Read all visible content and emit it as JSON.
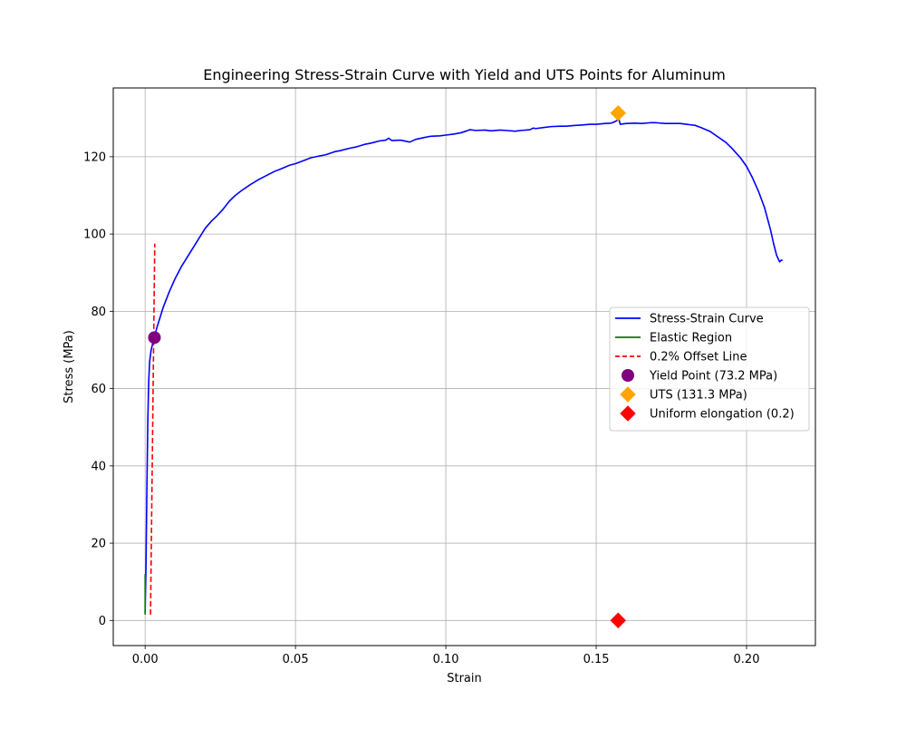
{
  "chart_data": {
    "type": "line",
    "title": "Engineering Stress-Strain Curve with Yield and UTS Points for Aluminum",
    "xlabel": "Strain",
    "ylabel": "Stress (MPa)",
    "xlim": [
      -0.0106,
      0.2229
    ],
    "ylim": [
      -6.5,
      137.8
    ],
    "x_ticks": [
      0.0,
      0.05,
      0.1,
      0.15,
      0.2
    ],
    "x_tick_labels": [
      "0.00",
      "0.05",
      "0.10",
      "0.15",
      "0.20"
    ],
    "y_ticks": [
      0,
      20,
      40,
      60,
      80,
      100,
      120
    ],
    "y_tick_labels": [
      "0",
      "20",
      "40",
      "60",
      "80",
      "100",
      "120"
    ],
    "grid": true,
    "legend_position": "center-right",
    "series": [
      {
        "name": "Stress-Strain Curve",
        "kind": "line",
        "color": "#0000ff",
        "style": "solid",
        "x": [
          0.0,
          0.0003,
          0.0006,
          0.0009,
          0.0012,
          0.0015,
          0.002,
          0.003,
          0.004,
          0.006,
          0.008,
          0.01,
          0.012,
          0.014,
          0.016,
          0.018,
          0.02,
          0.022,
          0.024,
          0.026,
          0.028,
          0.03,
          0.032,
          0.035,
          0.038,
          0.04,
          0.043,
          0.045,
          0.048,
          0.05,
          0.053,
          0.055,
          0.058,
          0.06,
          0.063,
          0.065,
          0.068,
          0.07,
          0.073,
          0.075,
          0.078,
          0.08,
          0.081,
          0.082,
          0.085,
          0.088,
          0.09,
          0.093,
          0.095,
          0.098,
          0.1,
          0.103,
          0.105,
          0.107,
          0.108,
          0.11,
          0.113,
          0.115,
          0.118,
          0.12,
          0.123,
          0.125,
          0.128,
          0.129,
          0.13,
          0.133,
          0.135,
          0.138,
          0.14,
          0.143,
          0.145,
          0.148,
          0.15,
          0.153,
          0.155,
          0.156,
          0.157,
          0.1573,
          0.158,
          0.16,
          0.163,
          0.165,
          0.168,
          0.17,
          0.173,
          0.175,
          0.178,
          0.18,
          0.183,
          0.185,
          0.188,
          0.19,
          0.193,
          0.195,
          0.198,
          0.2,
          0.202,
          0.204,
          0.206,
          0.208,
          0.209,
          0.21,
          0.211,
          0.2115,
          0.212
        ],
        "y": [
          2,
          15,
          35,
          52,
          62,
          67,
          70,
          73.2,
          76,
          81,
          85,
          88.5,
          91.5,
          94,
          96.5,
          99,
          101.5,
          103.3,
          104.8,
          106.5,
          108.5,
          110,
          111.2,
          112.8,
          114.2,
          115,
          116.2,
          116.8,
          117.8,
          118.2,
          119.1,
          119.7,
          120.2,
          120.5,
          121.3,
          121.6,
          122.2,
          122.5,
          123.2,
          123.5,
          124.1,
          124.3,
          124.8,
          124.2,
          124.3,
          123.8,
          124.5,
          125,
          125.3,
          125.4,
          125.6,
          125.9,
          126.2,
          126.7,
          127,
          126.8,
          126.9,
          126.7,
          126.9,
          126.8,
          126.6,
          126.8,
          127,
          127.4,
          127.3,
          127.6,
          127.8,
          127.9,
          127.9,
          128.1,
          128.2,
          128.4,
          128.4,
          128.6,
          128.7,
          129,
          129.4,
          130.5,
          128.4,
          128.6,
          128.7,
          128.6,
          128.8,
          128.8,
          128.6,
          128.6,
          128.6,
          128.4,
          128.1,
          127.5,
          126.5,
          125.4,
          123.8,
          122.3,
          119.7,
          117.5,
          114.5,
          111,
          106.8,
          101,
          97.5,
          94.5,
          92.8,
          93.2,
          93.2
        ]
      },
      {
        "name": "Elastic Region",
        "kind": "line",
        "color": "#008000",
        "style": "solid",
        "x": [
          0.0,
          0.0
        ],
        "y": [
          1.5,
          12
        ]
      },
      {
        "name": "0.2% Offset Line",
        "kind": "line",
        "color": "#ff0000",
        "style": "dashed",
        "x": [
          0.0018,
          0.0032
        ],
        "y": [
          1.5,
          97.5
        ]
      },
      {
        "name": "Yield Point (73.2 MPa)",
        "kind": "scatter",
        "marker": "circle",
        "color": "#800080",
        "x": [
          0.0031
        ],
        "y": [
          73.2
        ]
      },
      {
        "name": "UTS (131.3 MPa)",
        "kind": "scatter",
        "marker": "diamond",
        "color": "#ffa500",
        "x": [
          0.1573
        ],
        "y": [
          131.3
        ]
      },
      {
        "name": "Uniform elongation (0.2)",
        "kind": "scatter",
        "marker": "diamond",
        "color": "#ff0000",
        "x": [
          0.1573
        ],
        "y": [
          0
        ]
      }
    ]
  }
}
